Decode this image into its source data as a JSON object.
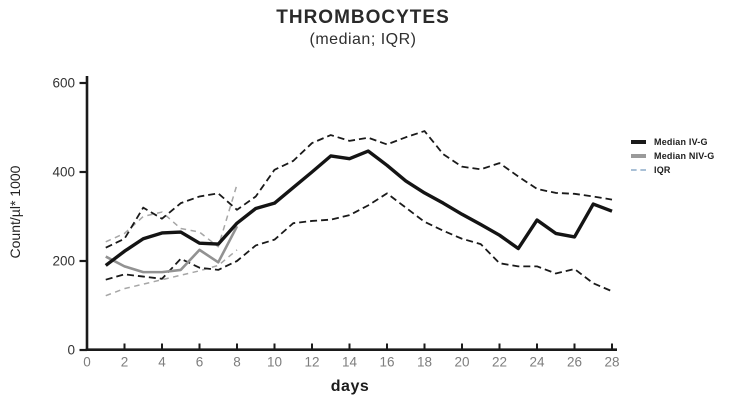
{
  "title": "THROMBOCYTES",
  "subtitle": "(median; IQR)",
  "chart_data": {
    "type": "line",
    "title": "THROMBOCYTES",
    "subtitle": "(median; IQR)",
    "xlabel": "days",
    "ylabel": "Count/µl* 1000",
    "xlim": [
      0,
      28
    ],
    "ylim": [
      0,
      600
    ],
    "x_ticks": [
      0,
      2,
      4,
      6,
      8,
      10,
      12,
      14,
      16,
      18,
      20,
      22,
      24,
      26,
      28
    ],
    "y_ticks": [
      0,
      200,
      400,
      600
    ],
    "grid": false,
    "legend_position": "right",
    "axis_color": "#1a1a1a",
    "x_tick_label_color": "#7d7d7d",
    "y_tick_label_color": "#333333",
    "series": [
      {
        "name": "IQR NIV-G upper",
        "group": "NIV-G",
        "role": "iqr-upper",
        "style": "dashed",
        "color": "#a6a6a6",
        "width": 1.5,
        "x": [
          1,
          2,
          3,
          4,
          5,
          6,
          7,
          8
        ],
        "y": [
          243,
          262,
          300,
          310,
          273,
          265,
          232,
          372
        ]
      },
      {
        "name": "IQR NIV-G lower",
        "group": "NIV-G",
        "role": "iqr-lower",
        "style": "dashed",
        "color": "#a6a6a6",
        "width": 1.5,
        "x": [
          1,
          2,
          3,
          4,
          5,
          6,
          7,
          8
        ],
        "y": [
          122,
          138,
          148,
          158,
          168,
          178,
          190,
          225
        ]
      },
      {
        "name": "IQR IV-G upper",
        "group": "IV-G",
        "role": "iqr-upper",
        "style": "dashed",
        "color": "#1a1a1a",
        "width": 1.8,
        "x": [
          1,
          2,
          3,
          4,
          5,
          6,
          7,
          8,
          9,
          10,
          11,
          12,
          13,
          14,
          15,
          16,
          17,
          18,
          19,
          20,
          21,
          22,
          23,
          24,
          25,
          26,
          27,
          28
        ],
        "y": [
          230,
          250,
          320,
          295,
          330,
          345,
          352,
          315,
          345,
          405,
          425,
          465,
          483,
          470,
          477,
          462,
          478,
          492,
          440,
          412,
          406,
          420,
          390,
          362,
          353,
          351,
          345,
          338
        ]
      },
      {
        "name": "IQR IV-G lower",
        "group": "IV-G",
        "role": "iqr-lower",
        "style": "dashed",
        "color": "#1a1a1a",
        "width": 1.8,
        "x": [
          1,
          2,
          3,
          4,
          5,
          6,
          7,
          8,
          9,
          10,
          11,
          12,
          13,
          14,
          15,
          16,
          17,
          18,
          19,
          20,
          21,
          22,
          23,
          24,
          25,
          26,
          27,
          28
        ],
        "y": [
          158,
          170,
          165,
          160,
          205,
          185,
          180,
          200,
          235,
          248,
          285,
          290,
          293,
          303,
          325,
          352,
          320,
          288,
          268,
          250,
          238,
          195,
          188,
          188,
          172,
          182,
          150,
          132
        ]
      },
      {
        "name": "Median NIV-G",
        "group": "NIV-G",
        "role": "median",
        "style": "solid",
        "color": "#929292",
        "width": 2.6,
        "x": [
          1,
          2,
          3,
          4,
          5,
          6,
          7,
          8
        ],
        "y": [
          210,
          188,
          175,
          175,
          180,
          225,
          197,
          278
        ]
      },
      {
        "name": "Median IV-G",
        "group": "IV-G",
        "role": "median",
        "style": "solid",
        "color": "#141414",
        "width": 3.4,
        "x": [
          1,
          2,
          3,
          4,
          5,
          6,
          7,
          8,
          9,
          10,
          11,
          12,
          13,
          14,
          15,
          16,
          17,
          18,
          19,
          20,
          21,
          22,
          23,
          24,
          25,
          26,
          27,
          28
        ],
        "y": [
          190,
          222,
          250,
          263,
          265,
          240,
          238,
          285,
          318,
          330,
          365,
          400,
          436,
          430,
          447,
          415,
          380,
          353,
          330,
          305,
          282,
          258,
          228,
          292,
          262,
          254,
          328,
          312
        ]
      }
    ]
  },
  "legend": {
    "items": [
      {
        "label": "Median IV-G",
        "pattern": "solid",
        "color": "#1a1a1a"
      },
      {
        "label": "Median NIV-G",
        "pattern": "solid",
        "color": "#9a9a9a"
      },
      {
        "label": "IQR",
        "pattern": "dashed",
        "color": "#a9c0d6"
      }
    ]
  }
}
